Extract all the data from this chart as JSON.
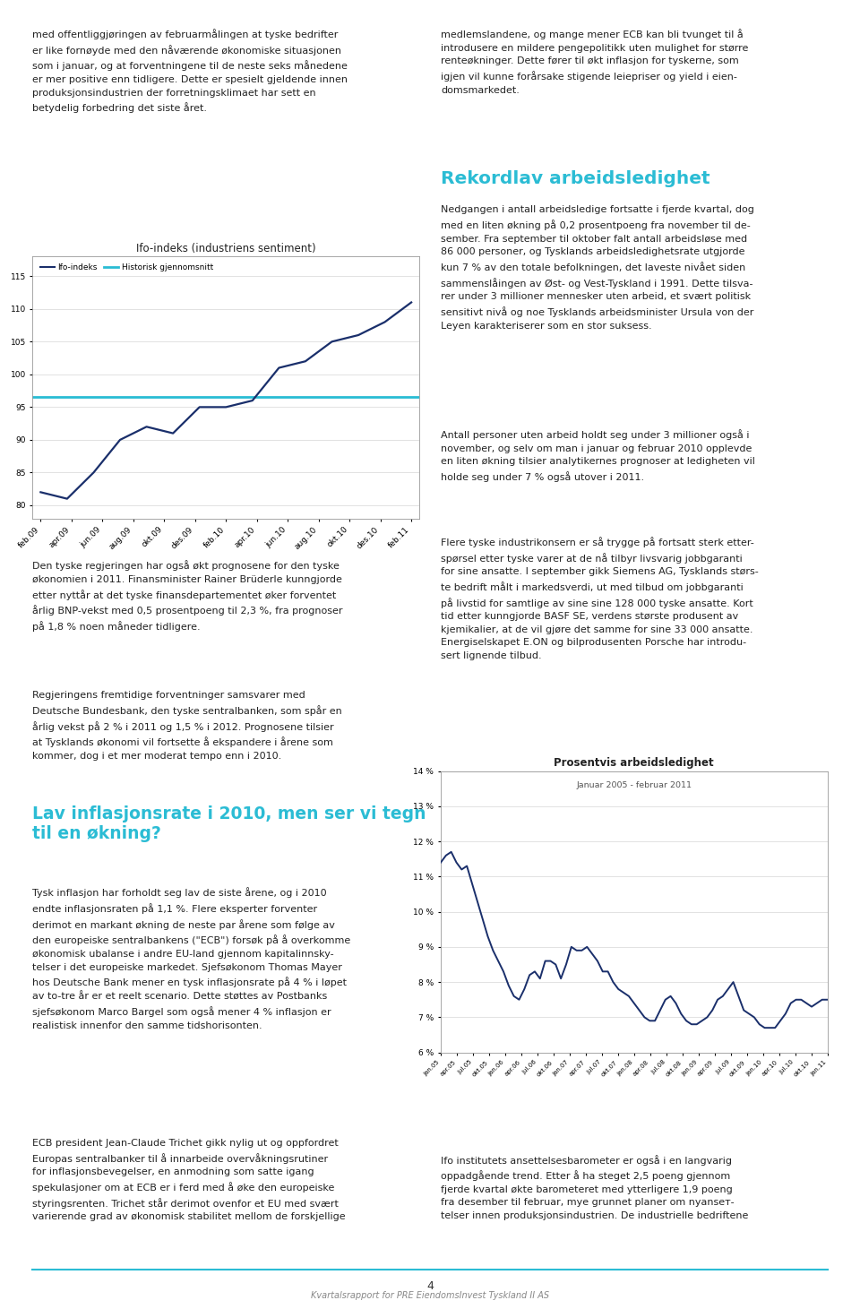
{
  "page_bg": "#ffffff",
  "chart1": {
    "title": "Ifo-indeks (industriens sentiment)",
    "legend_items": [
      "Ifo-indeks",
      "Historisk gjennomsnitt"
    ],
    "legend_colors": [
      "#1a2f6b",
      "#29bcd4"
    ],
    "ylim": [
      78,
      118
    ],
    "yticks": [
      80,
      85,
      90,
      95,
      100,
      105,
      110,
      115
    ],
    "xtick_labels": [
      "feb.09",
      "apr.09",
      "jun.09",
      "aug.09",
      "okt.09",
      "des.09",
      "feb.10",
      "apr.10",
      "jun.10",
      "aug.10",
      "okt.10",
      "des.10",
      "feb.11"
    ],
    "ifo_values": [
      82,
      81,
      85,
      90,
      92,
      91,
      95,
      95,
      96,
      101,
      102,
      105,
      106,
      108,
      111
    ],
    "historical_avg": 96.5,
    "line_color": "#1a2f6b",
    "avg_color": "#29bcd4",
    "grid_color": "#cccccc"
  },
  "chart2": {
    "title": "Prosentvis arbeidsledighet",
    "subtitle": "Januar 2005 - februar 2011",
    "ylim": [
      6,
      14
    ],
    "ytick_labels": [
      "6 %",
      "7 %",
      "8 %",
      "9 %",
      "10 %",
      "11 %",
      "12 %",
      "13 %",
      "14 %"
    ],
    "ytick_values": [
      6,
      7,
      8,
      9,
      10,
      11,
      12,
      13,
      14
    ],
    "xtick_labels": [
      "jan.05",
      "apr.05",
      "jul.05",
      "okt.05",
      "jan.06",
      "apr.06",
      "jul.06",
      "okt.06",
      "jan.07",
      "apr.07",
      "jul.07",
      "okt.07",
      "jan.08",
      "apr.08",
      "jul.08",
      "okt.08",
      "jan.09",
      "apr.09",
      "jul.09",
      "okt.09",
      "jan.10",
      "apr.10",
      "jul.10",
      "okt.10",
      "jan.11"
    ],
    "values": [
      11.4,
      11.6,
      11.7,
      11.4,
      11.2,
      11.3,
      10.8,
      10.3,
      9.8,
      9.3,
      8.9,
      8.6,
      8.3,
      7.9,
      7.6,
      7.5,
      7.8,
      8.2,
      8.3,
      8.1,
      8.6,
      8.6,
      8.5,
      8.1,
      8.5,
      9.0,
      8.9,
      8.9,
      9.0,
      8.8,
      8.6,
      8.3,
      8.3,
      8.0,
      7.8,
      7.7,
      7.6,
      7.4,
      7.2,
      7.0,
      6.9,
      6.9,
      7.2,
      7.5,
      7.6,
      7.4,
      7.1,
      6.9,
      6.8,
      6.8,
      6.9,
      7.0,
      7.2,
      7.5,
      7.6,
      7.8,
      8.0,
      7.6,
      7.2,
      7.1,
      7.0,
      6.8,
      6.7,
      6.7,
      6.7,
      6.9,
      7.1,
      7.4,
      7.5,
      7.5,
      7.4,
      7.3,
      7.4,
      7.5,
      7.5
    ],
    "line_color": "#1a2f6b",
    "grid_color": "#cccccc"
  },
  "footer_text": "4",
  "footer_subtext": "Kvartalsrapport for PRE EiendomsInvest Tyskland II AS",
  "footer_line_color": "#2bbcd4"
}
